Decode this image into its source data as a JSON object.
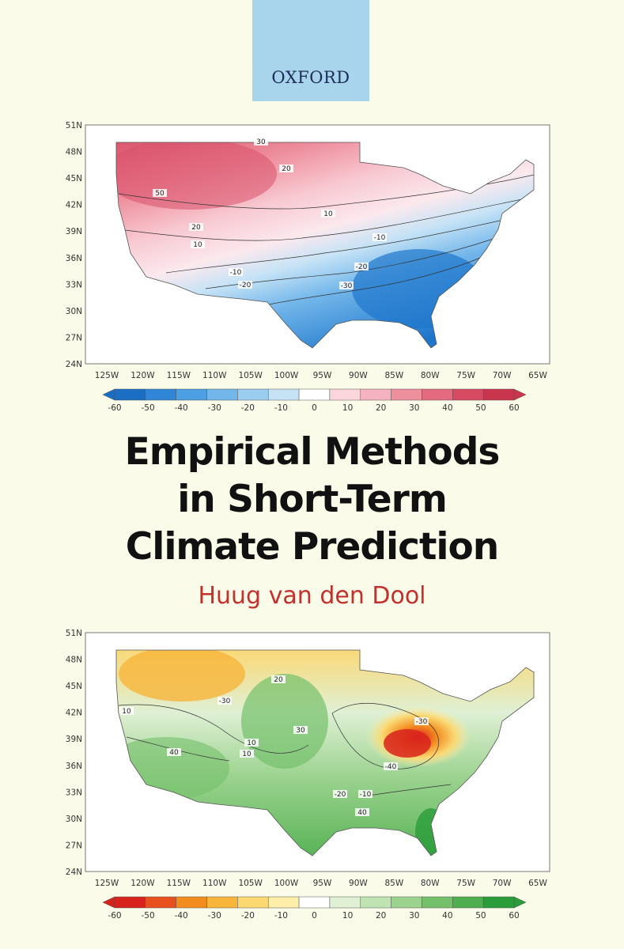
{
  "publisher": "OXFORD",
  "title_lines": [
    "Empirical Methods",
    "in Short-Term",
    "Climate Prediction"
  ],
  "author": "Huug van den Dool",
  "maps": {
    "lat_labels": [
      "51N",
      "48N",
      "45N",
      "42N",
      "39N",
      "36N",
      "33N",
      "30N",
      "27N",
      "24N"
    ],
    "lon_labels": [
      "125W",
      "120W",
      "115W",
      "110W",
      "105W",
      "100W",
      "95W",
      "90W",
      "85W",
      "80W",
      "75W",
      "70W",
      "65W"
    ],
    "colorbar_labels": [
      "-60",
      "-50",
      "-40",
      "-30",
      "-20",
      "-10",
      "0",
      "10",
      "20",
      "30",
      "40",
      "50",
      "60"
    ],
    "top_map": {
      "colorbar_colors": [
        "#1a6fc4",
        "#2f86d6",
        "#4c9fe2",
        "#72b6ea",
        "#9bcdf0",
        "#c6e3f6",
        "#ffffff",
        "#fbd6dc",
        "#f5b3bf",
        "#ee8f9e",
        "#e46b7f",
        "#d84a62",
        "#c9354d"
      ],
      "contour_labels": [
        "30",
        "20",
        "50",
        "10",
        "20",
        "10",
        "-10",
        "-20",
        "-10",
        "-20",
        "-30"
      ]
    },
    "bottom_map": {
      "colorbar_colors": [
        "#d8231d",
        "#e8501e",
        "#f38c1f",
        "#f7b53b",
        "#fbd872",
        "#fdeeaa",
        "#ffffff",
        "#dff0d4",
        "#bfe3b3",
        "#9ad28e",
        "#74c06b",
        "#4faf4e",
        "#2a9c39"
      ],
      "contour_labels": [
        "20",
        "-30",
        "10",
        "30",
        "10",
        "40",
        "10",
        "-30",
        "-40",
        "-20",
        "-10",
        "40"
      ]
    }
  }
}
